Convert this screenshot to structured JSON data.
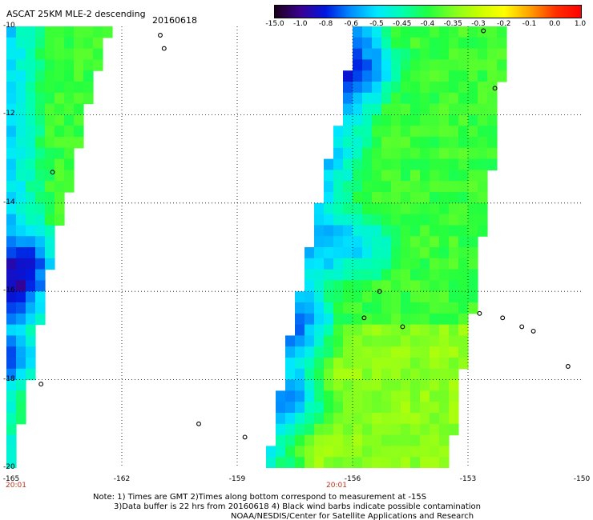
{
  "header": {
    "title": "ASCAT 25KM MLE-2 descending",
    "date": "20160618"
  },
  "colorbar": {
    "labels": [
      "-15.0",
      "-1.0",
      "-0.8",
      "-0.6",
      "-0.5",
      "-0.45",
      "-0.4",
      "-0.35",
      "-0.3",
      "-0.2",
      "-0.1",
      "0.0",
      "1.0"
    ],
    "colors": [
      "#1a0018",
      "#3a0090",
      "#0018e0",
      "#0090ff",
      "#00e8ff",
      "#00ffb0",
      "#20ff40",
      "#80ff20",
      "#c8ff00",
      "#ffff00",
      "#ffa000",
      "#ff3000",
      "#ff0000"
    ]
  },
  "axes": {
    "lat_labels": [
      "-10",
      "-12",
      "-14",
      "-16",
      "-18",
      "-20"
    ],
    "lon_labels": [
      "-165",
      "-162",
      "-159",
      "-156",
      "-153",
      "-150"
    ],
    "time_labels": [
      "20:01",
      "20:01"
    ]
  },
  "map_data": {
    "lon_range": [
      -165,
      -150
    ],
    "lat_range": [
      -20,
      -10
    ],
    "grid": true,
    "swaths": [
      {
        "name": "west",
        "west_edge": [
          [
            -10,
            -165
          ],
          [
            -20,
            -165
          ]
        ],
        "east_edge": [
          [
            -10,
            -162.3
          ],
          [
            -11.5,
            -162.8
          ],
          [
            -13,
            -163.2
          ],
          [
            -14.5,
            -163.6
          ],
          [
            -16,
            -164
          ],
          [
            -18,
            -164.4
          ],
          [
            -20,
            -164.9
          ]
        ],
        "min_features": [
          [
            -15.2,
            -164.3
          ],
          [
            -16,
            -164.6
          ],
          [
            -17.5,
            -164.7
          ]
        ]
      },
      {
        "name": "east",
        "west_edge": [
          [
            -10,
            -155.9
          ],
          [
            -12,
            -156.3
          ],
          [
            -14,
            -156.9
          ],
          [
            -16,
            -157.4
          ],
          [
            -18,
            -157.8
          ],
          [
            -20,
            -158.2
          ]
        ],
        "east_edge": [
          [
            -10,
            -152.0
          ],
          [
            -12,
            -152.2
          ],
          [
            -14,
            -152.5
          ],
          [
            -16,
            -152.8
          ],
          [
            -18,
            -153.2
          ],
          [
            -20,
            -153.5
          ]
        ],
        "min_features": [
          [
            -15,
            -155.9
          ],
          [
            -17,
            -157.3
          ],
          [
            -18.5,
            -157.5
          ],
          [
            -11,
            -155.7
          ]
        ]
      }
    ],
    "islands": [
      [
        -10.2,
        -161
      ],
      [
        -10.5,
        -160.9
      ],
      [
        -13.3,
        -163.8
      ],
      [
        -18.1,
        -164.1
      ],
      [
        -19,
        -160
      ],
      [
        -19.3,
        -158.8
      ],
      [
        -16,
        -155.3
      ],
      [
        -16.6,
        -155.7
      ],
      [
        -16.8,
        -154.7
      ],
      [
        -16.5,
        -152.7
      ],
      [
        -16.6,
        -152.1
      ],
      [
        -16.8,
        -151.6
      ],
      [
        -16.9,
        -151.3
      ],
      [
        -17.7,
        -150.4
      ],
      [
        -10.1,
        -152.6
      ],
      [
        -11.4,
        -152.3
      ]
    ]
  },
  "footer": {
    "line1": "Note: 1) Times are GMT 2)Times along bottom correspond to measurement at -15S",
    "line2": "3)Data buffer is 22 hrs from 20160618 4) Black wind barbs indicate possible contamination",
    "line3": "NOAA/NESDIS/Center for Satellite Applications and Research"
  }
}
